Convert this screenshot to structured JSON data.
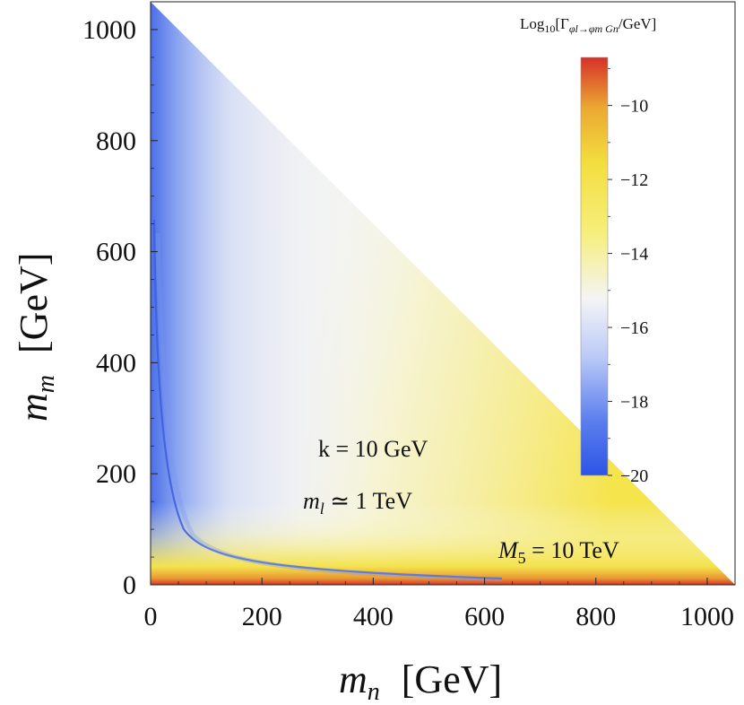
{
  "chart_data": {
    "type": "heatmap",
    "title": "",
    "x": {
      "symbol": "m",
      "subscript": "n",
      "unit": "[GeV]",
      "range": [
        0,
        1050
      ],
      "ticks": [
        0,
        200,
        400,
        600,
        800,
        1000
      ],
      "tick_labels": [
        "0",
        "200",
        "400",
        "600",
        "800",
        "1000"
      ]
    },
    "y": {
      "symbol": "m",
      "subscript": "m",
      "unit": "[GeV]",
      "range": [
        0,
        1050
      ],
      "ticks": [
        0,
        200,
        400,
        600,
        800,
        1000
      ],
      "tick_labels": [
        "0",
        "200",
        "400",
        "600",
        "800",
        "1000"
      ]
    },
    "region": "m_n + m_m < 1050 GeV (kinematically allowed triangle)",
    "colorbar": {
      "title_prefix": "Log",
      "title_base": "10",
      "title_body": "[Γ",
      "title_sub": "φl→φm Gn",
      "title_suffix": "/GeV]",
      "range": [
        -20,
        -8.7
      ],
      "ticks": [
        -10,
        -12,
        -14,
        -16,
        -18,
        -20
      ],
      "tick_labels": [
        "−10",
        "−12",
        "−14",
        "−16",
        "−18",
        "−20"
      ],
      "colors": [
        "#2c55e6",
        "#8aa6f0",
        "#f7f7f5",
        "#f4ec66",
        "#f1d23a",
        "#e48a2c",
        "#d6302a"
      ]
    },
    "annotations": {
      "k": {
        "text": "k = 10 GeV"
      },
      "ml_symbol": "m",
      "ml_sub": "l",
      "ml_rest": " ≃ 1 TeV",
      "m5_symbol": "M",
      "m5_sub": "5",
      "m5_rest": " = 10 TeV"
    }
  }
}
